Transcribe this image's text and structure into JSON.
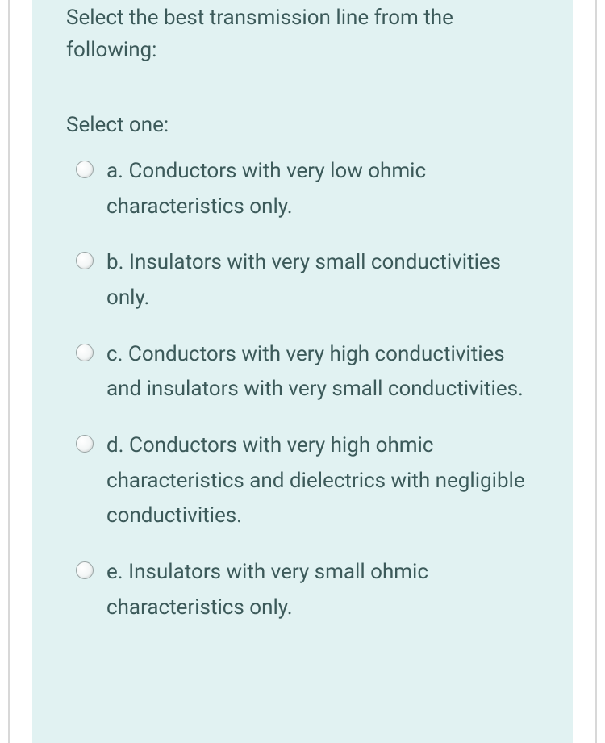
{
  "question": {
    "text": "Select the best transmission line from the following:",
    "select_label": "Select one:",
    "options": [
      {
        "letter": "a.",
        "text": "Conductors with very low ohmic characteristics only."
      },
      {
        "letter": "b.",
        "text": "Insulators with very small conductivities only."
      },
      {
        "letter": "c.",
        "text": "Conductors with very high conductivities and insulators with very small conductivities."
      },
      {
        "letter": "d.",
        "text": "Conductors with very high ohmic characteristics and dielectrics with negligible conductivities."
      },
      {
        "letter": "e.",
        "text": "Insulators with very small ohmic characteristics only."
      }
    ]
  },
  "colors": {
    "box_bg": "#e1f2f2",
    "text": "#3c5a5a",
    "frame_border": "#d8d8d8",
    "radio_border": "#9aa5a5"
  },
  "typography": {
    "font_size": 26,
    "line_height_question": 1.55,
    "line_height_option": 1.68
  }
}
